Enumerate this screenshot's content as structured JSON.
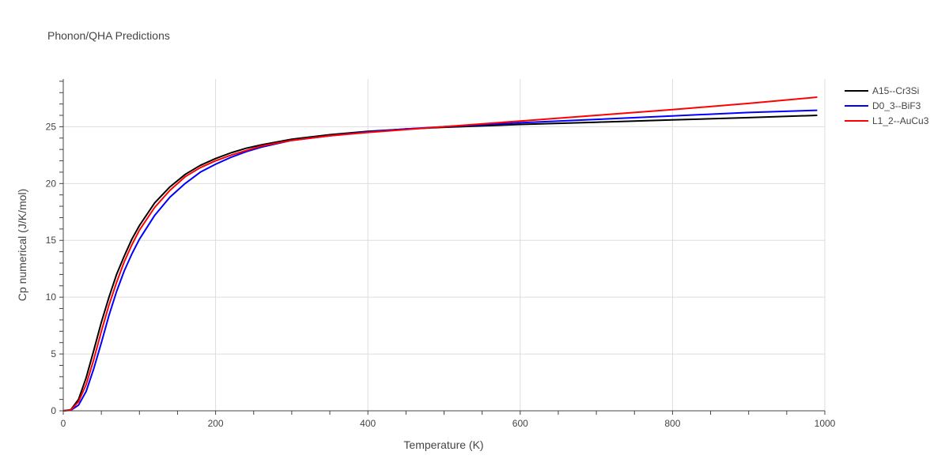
{
  "chart_data": {
    "type": "line",
    "title": "Phonon/QHA Predictions",
    "xlabel": "Temperature (K)",
    "ylabel": "Cp numerical (J/K/mol)",
    "xlim": [
      0,
      1000
    ],
    "ylim": [
      0,
      29.2
    ],
    "xticks": [
      0,
      200,
      400,
      600,
      800,
      1000
    ],
    "yticks": [
      0,
      5,
      10,
      15,
      20,
      25
    ],
    "grid": true,
    "legend_position": "top-right",
    "series": [
      {
        "name": "A15--Cr3Si",
        "color": "#000000",
        "x": [
          0,
          10,
          20,
          30,
          40,
          50,
          60,
          70,
          80,
          90,
          100,
          120,
          140,
          160,
          180,
          200,
          220,
          240,
          260,
          300,
          350,
          400,
          450,
          500,
          600,
          700,
          800,
          900,
          990
        ],
        "y": [
          0,
          0.1,
          1.0,
          2.9,
          5.3,
          7.8,
          10.0,
          12.0,
          13.6,
          15.1,
          16.3,
          18.3,
          19.7,
          20.8,
          21.6,
          22.2,
          22.7,
          23.1,
          23.4,
          23.9,
          24.3,
          24.6,
          24.8,
          24.95,
          25.2,
          25.4,
          25.6,
          25.8,
          26.0
        ]
      },
      {
        "name": "D0_3--BiF3",
        "color": "#0000ff",
        "x": [
          0,
          10,
          20,
          30,
          40,
          50,
          60,
          70,
          80,
          90,
          100,
          120,
          140,
          160,
          180,
          200,
          220,
          240,
          260,
          300,
          350,
          400,
          450,
          500,
          600,
          700,
          800,
          900,
          990
        ],
        "y": [
          0,
          0.05,
          0.5,
          1.7,
          3.7,
          6.0,
          8.4,
          10.5,
          12.3,
          13.8,
          15.1,
          17.2,
          18.8,
          20.0,
          21.0,
          21.7,
          22.3,
          22.8,
          23.2,
          23.8,
          24.2,
          24.55,
          24.8,
          25.0,
          25.35,
          25.65,
          25.95,
          26.25,
          26.45
        ]
      },
      {
        "name": "L1_2--AuCu3",
        "color": "#ff0000",
        "x": [
          0,
          10,
          20,
          30,
          40,
          50,
          60,
          70,
          80,
          90,
          100,
          120,
          140,
          160,
          180,
          200,
          220,
          240,
          260,
          300,
          350,
          400,
          450,
          500,
          600,
          700,
          800,
          900,
          990
        ],
        "y": [
          0,
          0.07,
          0.8,
          2.3,
          4.5,
          7.0,
          9.3,
          11.3,
          13.1,
          14.6,
          15.9,
          17.9,
          19.4,
          20.6,
          21.4,
          22.0,
          22.5,
          22.9,
          23.3,
          23.8,
          24.2,
          24.5,
          24.75,
          25.0,
          25.5,
          26.0,
          26.5,
          27.05,
          27.6
        ]
      }
    ]
  }
}
